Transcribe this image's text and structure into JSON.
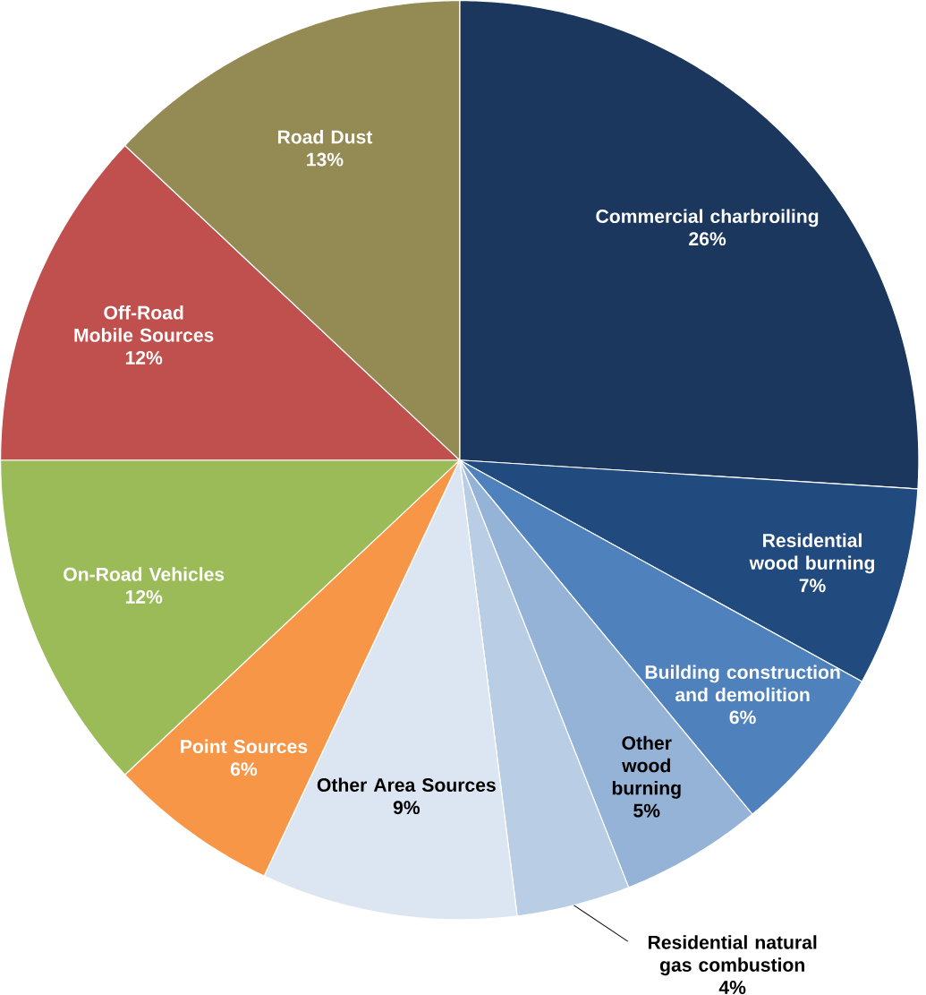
{
  "chart_data": {
    "type": "pie",
    "categories": [
      "Commercial charbroiling",
      "Residential wood burning",
      "Building construction and demolition",
      "Other wood burning",
      "Residential natural gas combustion",
      "Other Area Sources",
      "Point Sources",
      "On-Road Vehicles",
      "Off-Road Mobile Sources",
      "Road Dust"
    ],
    "values": [
      26,
      7,
      6,
      5,
      4,
      9,
      6,
      12,
      12,
      13
    ],
    "value_labels": [
      "26%",
      "7%",
      "6%",
      "5%",
      "4%",
      "9%",
      "6%",
      "12%",
      "12%",
      "13%"
    ],
    "colors": [
      "#1b375e",
      "#214a7e",
      "#4f81bd",
      "#95b3d7",
      "#b9cde5",
      "#dce6f2",
      "#f79646",
      "#9bbb59",
      "#c0504d",
      "#948a54"
    ]
  }
}
